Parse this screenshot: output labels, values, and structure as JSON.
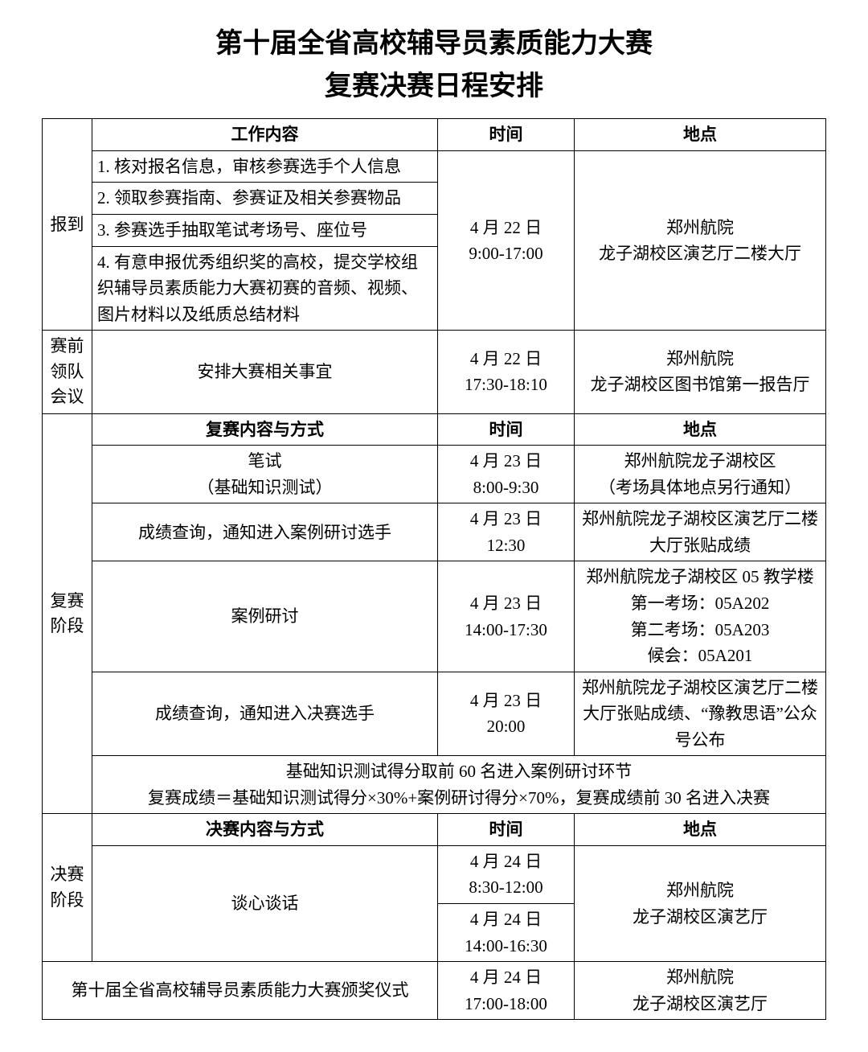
{
  "title_line1": "第十届全省高校辅导员素质能力大赛",
  "title_line2": "复赛决赛日程安排",
  "hdr": {
    "work_content": "工作内容",
    "time": "时间",
    "place": "地点",
    "semi_content": "复赛内容与方式",
    "final_content": "决赛内容与方式"
  },
  "sections": {
    "checkin": "报到",
    "preleader": "赛前\n领队\n会议",
    "semi": "复赛\n阶段",
    "final": "决赛\n阶段"
  },
  "checkin": {
    "items": {
      "i1": "1. 核对报名信息，审核参赛选手个人信息",
      "i2": "2. 领取参赛指南、参赛证及相关参赛物品",
      "i3": "3. 参赛选手抽取笔试考场号、座位号",
      "i4": "4. 有意申报优秀组织奖的高校，提交学校组织辅导员素质能力大赛初赛的音频、视频、图片材料以及纸质总结材料"
    },
    "time": "4 月 22 日\n9:00-17:00",
    "place": "郑州航院\n龙子湖校区演艺厅二楼大厅"
  },
  "preleader": {
    "content": "安排大赛相关事宜",
    "time": "4 月 22 日\n17:30-18:10",
    "place": "郑州航院\n龙子湖校区图书馆第一报告厅"
  },
  "semi": {
    "rows": {
      "r1": {
        "content": "笔试\n（基础知识测试）",
        "time": "4 月 23 日\n8:00-9:30",
        "place": "郑州航院龙子湖校区\n（考场具体地点另行通知）"
      },
      "r2": {
        "content": "成绩查询，通知进入案例研讨选手",
        "time": "4 月 23 日\n12:30",
        "place": "郑州航院龙子湖校区演艺厅二楼大厅张贴成绩"
      },
      "r3": {
        "content": "案例研讨",
        "time": "4 月 23 日\n14:00-17:30",
        "place": "郑州航院龙子湖校区 05 教学楼\n第一考场：05A202\n第二考场：05A203\n候会：05A201"
      },
      "r4": {
        "content": "成绩查询，通知进入决赛选手",
        "time": "4 月 23 日\n20:00",
        "place": "郑州航院龙子湖校区演艺厅二楼大厅张贴成绩、“豫教思语”公众号公布"
      }
    },
    "note": "基础知识测试得分取前 60 名进入案例研讨环节\n复赛成绩＝基础知识测试得分×30%+案例研讨得分×70%，复赛成绩前 30 名进入决赛"
  },
  "final": {
    "content": "谈心谈话",
    "time1": "4 月 24 日\n8:30-12:00",
    "time2": "4 月 24 日\n14:00-16:30",
    "place": "郑州航院\n龙子湖校区演艺厅"
  },
  "award": {
    "content": "第十届全省高校辅导员素质能力大赛颁奖仪式",
    "time": "4 月 24 日\n17:00-18:00",
    "place": "郑州航院\n龙子湖校区演艺厅"
  }
}
